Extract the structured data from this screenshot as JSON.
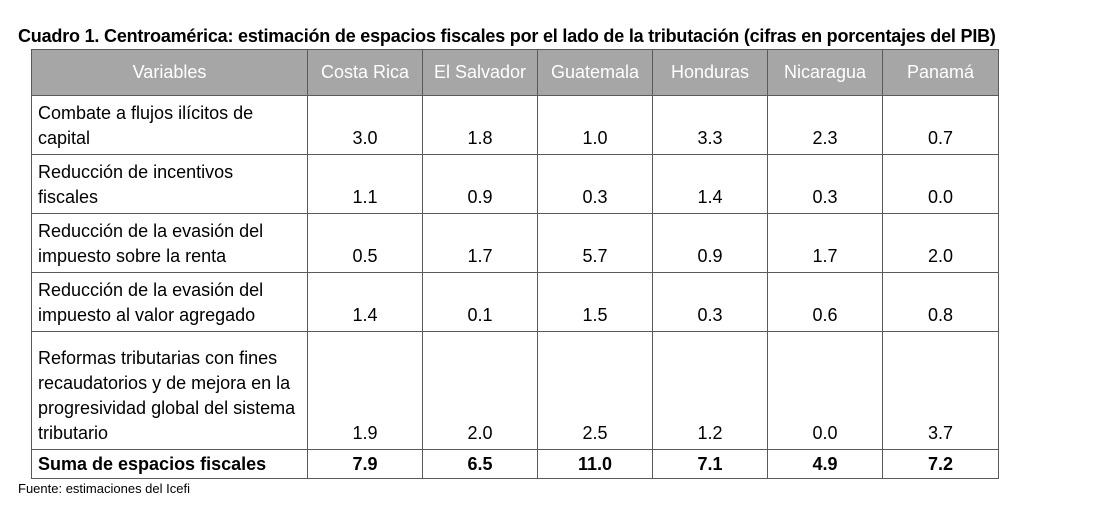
{
  "title": "Cuadro 1. Centroamérica: estimación de espacios fiscales por el lado de la tributación (cifras en porcentajes del PIB)",
  "headers": [
    "Variables",
    "Costa Rica",
    "El Salvador",
    "Guatemala",
    "Honduras",
    "Nicaragua",
    "Panamá"
  ],
  "rows": [
    {
      "label": "Combate a flujos ilícitos de capital",
      "values": [
        "3.0",
        "1.8",
        "1.0",
        "3.3",
        "2.3",
        "0.7"
      ]
    },
    {
      "label": "Reducción de incentivos fiscales",
      "values": [
        "1.1",
        "0.9",
        "0.3",
        "1.4",
        "0.3",
        "0.0"
      ]
    },
    {
      "label": "Reducción de la evasión del impuesto sobre la renta",
      "values": [
        "0.5",
        "1.7",
        "5.7",
        "0.9",
        "1.7",
        "2.0"
      ]
    },
    {
      "label": "Reducción de la evasión del impuesto al valor agregado",
      "values": [
        "1.4",
        "0.1",
        "1.5",
        "0.3",
        "0.6",
        "0.8"
      ]
    },
    {
      "label": "Reformas tributarias con fines recaudatorios y de mejora en la progresividad global del sistema tributario",
      "values": [
        "1.9",
        "2.0",
        "2.5",
        "1.2",
        "0.0",
        "3.7"
      ]
    }
  ],
  "total": {
    "label": "Suma de espacios fiscales",
    "values": [
      "7.9",
      "6.5",
      "11.0",
      "7.1",
      "4.9",
      "7.2"
    ]
  },
  "source": "Fuente: estimaciones del Icefi"
}
